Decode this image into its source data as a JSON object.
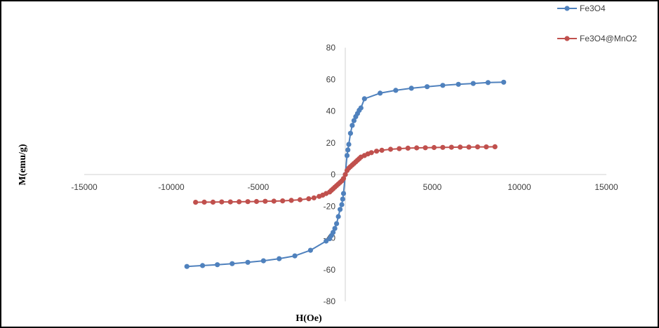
{
  "chart_data": {
    "type": "scatter",
    "xlabel": "H(Oe)",
    "ylabel": "M(emu/g)",
    "xlim": [
      -15000,
      15000
    ],
    "ylim": [
      -80,
      80
    ],
    "x_ticks": [
      -15000,
      -10000,
      -5000,
      5000,
      10000,
      15000
    ],
    "y_ticks": [
      80,
      60,
      40,
      20,
      0,
      -20,
      -40,
      -60,
      -80
    ],
    "grid": false,
    "legend_position": "top-right",
    "series": [
      {
        "name": "Fe3O4",
        "color": "#4F81BD",
        "x": [
          -9100,
          -8200,
          -7350,
          -6500,
          -5600,
          -4700,
          -3800,
          -2900,
          -2000,
          -1100,
          -900,
          -800,
          -700,
          -600,
          -500,
          -400,
          -300,
          -200,
          -150,
          -100,
          0,
          100,
          150,
          200,
          300,
          400,
          500,
          600,
          700,
          800,
          900,
          1100,
          2000,
          2900,
          3800,
          4700,
          5600,
          6500,
          7350,
          8200,
          9100
        ],
        "y": [
          -58,
          -57.4,
          -56.9,
          -56.2,
          -55.4,
          -54.4,
          -53.1,
          -51.3,
          -47.8,
          -42,
          -40.5,
          -38.5,
          -36.5,
          -34,
          -31,
          -26.5,
          -22,
          -19,
          -15.5,
          -12,
          0,
          12,
          15.5,
          19,
          26,
          31,
          34,
          36.5,
          38.5,
          40.5,
          42,
          47.8,
          51.3,
          53.1,
          54.4,
          55.4,
          56.2,
          56.9,
          57.4,
          58,
          58.2
        ]
      },
      {
        "name": "Fe3O4@MnO2",
        "color": "#C0504D",
        "x": [
          -8600,
          -8100,
          -7600,
          -7100,
          -6600,
          -6100,
          -5600,
          -5100,
          -4600,
          -4100,
          -3600,
          -3100,
          -2600,
          -2100,
          -1800,
          -1500,
          -1300,
          -1100,
          -900,
          -800,
          -700,
          -600,
          -500,
          -400,
          -300,
          -200,
          -100,
          0,
          100,
          200,
          300,
          400,
          500,
          600,
          700,
          800,
          900,
          1100,
          1300,
          1500,
          1800,
          2100,
          2600,
          3100,
          3600,
          4100,
          4600,
          5100,
          5600,
          6100,
          6600,
          7100,
          7600,
          8100,
          8600
        ],
        "y": [
          -17.5,
          -17.4,
          -17.4,
          -17.3,
          -17.3,
          -17.2,
          -17.1,
          -17,
          -16.9,
          -16.8,
          -16.6,
          -16.3,
          -15.9,
          -15.3,
          -14.7,
          -13.8,
          -13,
          -12,
          -11,
          -10,
          -9,
          -8,
          -7,
          -6,
          -5,
          -4,
          -2.5,
          0,
          2.5,
          4,
          5,
          6,
          7,
          8,
          9,
          10,
          11,
          12,
          13,
          13.8,
          14.7,
          15.3,
          15.9,
          16.3,
          16.6,
          16.8,
          16.9,
          17,
          17.1,
          17.2,
          17.3,
          17.3,
          17.4,
          17.4,
          17.5
        ]
      }
    ]
  }
}
